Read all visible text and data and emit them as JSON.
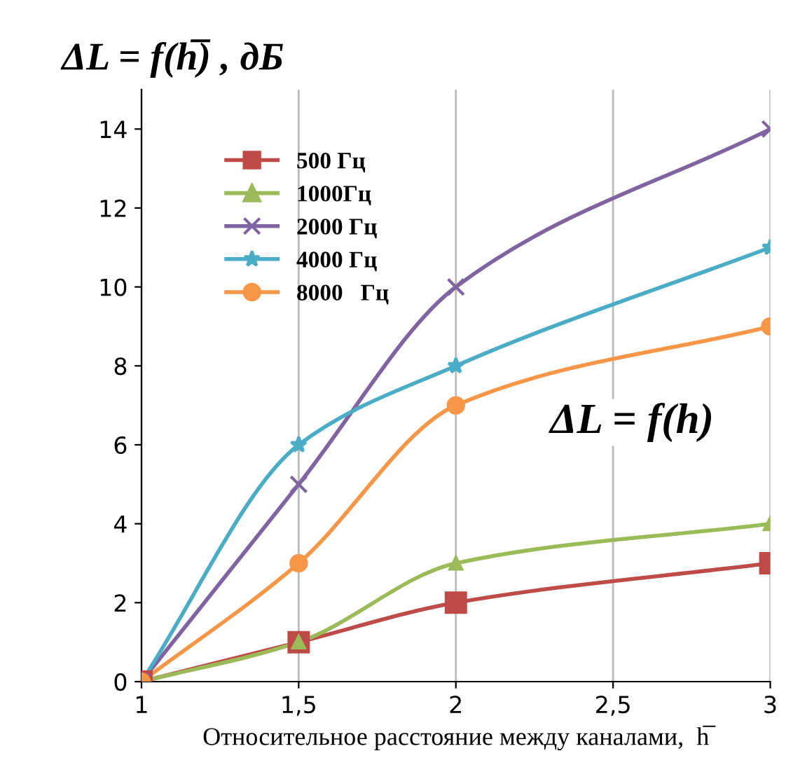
{
  "chart_data": {
    "type": "line",
    "ylabel": "ΔL = f(h̅) , дБ",
    "xlabel": "Относительное расстояние между каналами,  h̅",
    "annotations": [
      "ΔL = f(h)"
    ],
    "x": [
      1,
      1.5,
      2,
      3
    ],
    "xlim": [
      1,
      3
    ],
    "xticks": [
      1,
      {
        "value": 1.5,
        "label": "1,5"
      },
      2,
      {
        "value": 2.5,
        "label": "2,5"
      },
      3
    ],
    "ylim": [
      0,
      15
    ],
    "yticks": [
      0,
      2,
      4,
      6,
      8,
      10,
      12,
      14
    ],
    "grid": "x",
    "legend": "top left",
    "series": [
      {
        "name": "500 Гц",
        "color": "#be4b48",
        "marker": "square",
        "values": [
          0,
          1,
          2,
          3
        ]
      },
      {
        "name": "1000Гц",
        "color": "#9bbb59",
        "marker": "triangle",
        "values": [
          0,
          1,
          3,
          4
        ]
      },
      {
        "name": "2000 Гц",
        "color": "#8064a2",
        "marker": "cross",
        "values": [
          0,
          5,
          10,
          14
        ]
      },
      {
        "name": "4000 Гц",
        "color": "#4bacc6",
        "marker": "star",
        "values": [
          0,
          6,
          8,
          11
        ]
      },
      {
        "name": "8000   Гц",
        "color": "#f79646",
        "marker": "circle",
        "values": [
          0,
          3,
          7,
          9
        ]
      }
    ]
  }
}
